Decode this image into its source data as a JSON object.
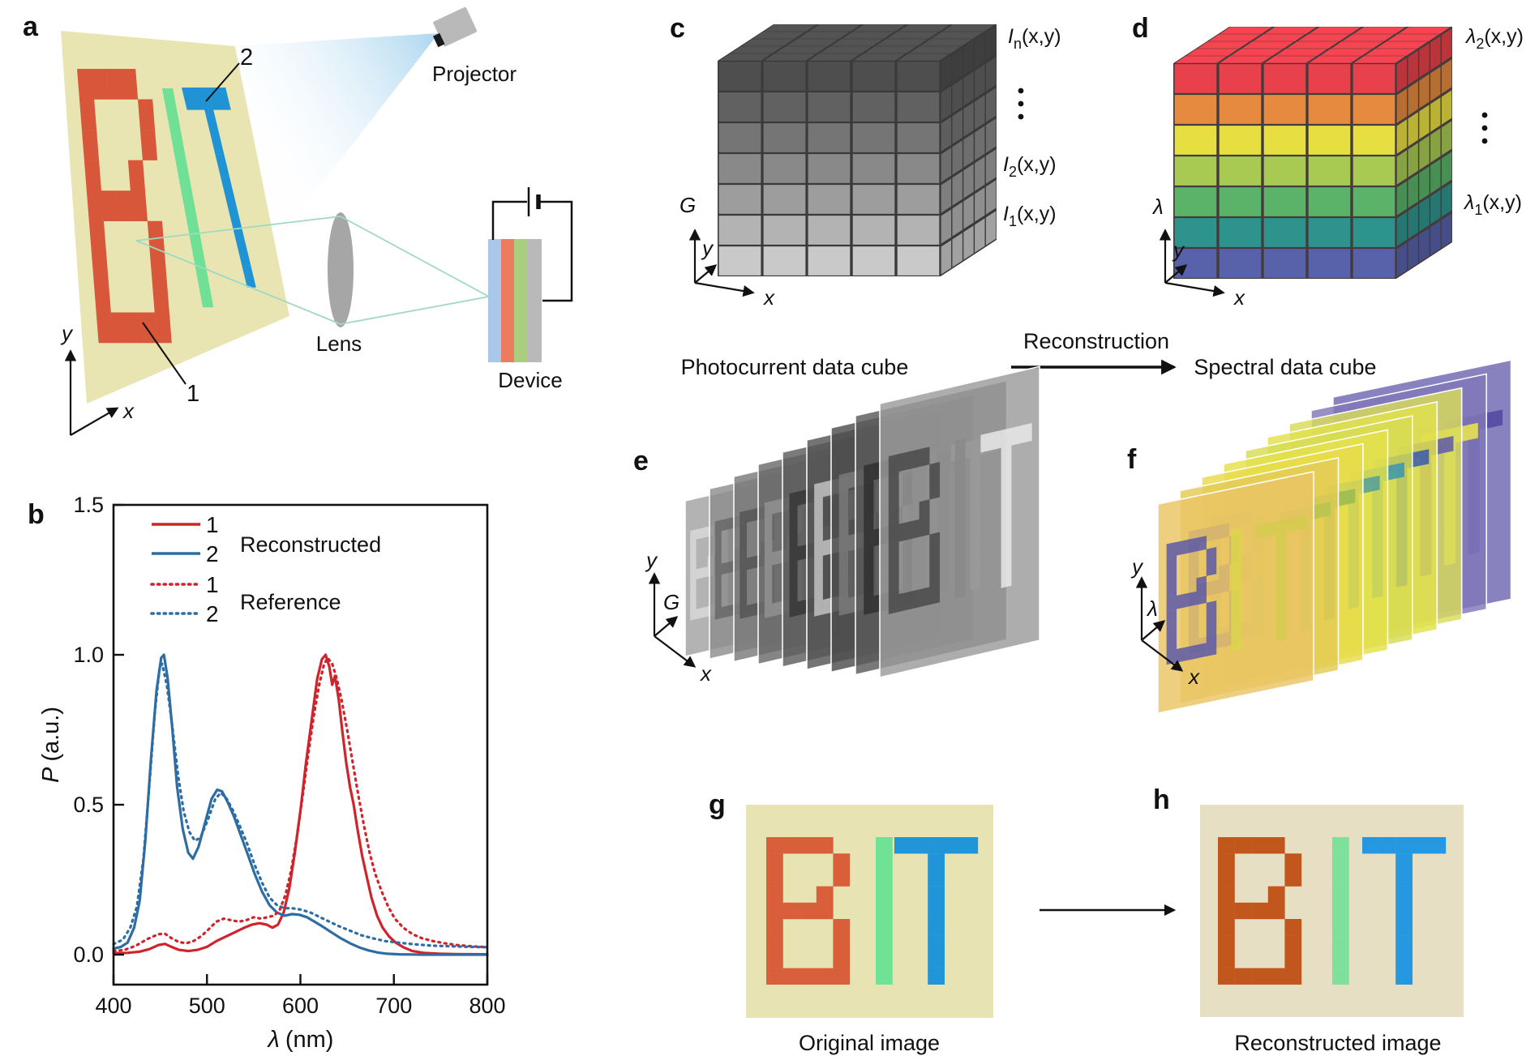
{
  "panel_labels": {
    "a": "a",
    "b": "b",
    "c": "c",
    "d": "d",
    "e": "e",
    "f": "f",
    "g": "g",
    "h": "h"
  },
  "panel_a": {
    "projector_label": "Projector",
    "lens_label": "Lens",
    "device_label": "Device",
    "marker_1": "1",
    "marker_2": "2",
    "axis_x": "x",
    "axis_y": "y",
    "colors": {
      "screen": "#e9e5b2",
      "letter_b": "#d8573a",
      "letter_i": "#6fe096",
      "letter_t": "#2093d4",
      "projector": "#b9b9b9",
      "nozzle": "#1a1a1a",
      "beam_start": "#a8d4ef",
      "beam_end": "#f6fbfe",
      "lens": "#a6a6a6",
      "ray": "#9fd9c0",
      "device_stripe_1": "#a9c7e8",
      "device_stripe_2": "#ec7c60",
      "device_stripe_3": "#a9cf7e",
      "device_stripe_4": "#b9b9b9",
      "wire": "#111111"
    }
  },
  "chart_data": {
    "type": "line",
    "title": "",
    "xlabel_sym": "λ",
    "xlabel_rest": "(nm)",
    "ylabel_sym": "P",
    "ylabel_rest": "(a.u.)",
    "xlim": [
      400,
      800
    ],
    "ylim": [
      0,
      1.5
    ],
    "grid": false,
    "legend_position": "upper-left",
    "xticks": [
      {
        "v": 400,
        "label": "400"
      },
      {
        "v": 500,
        "label": "500"
      },
      {
        "v": 600,
        "label": "600"
      },
      {
        "v": 700,
        "label": "700"
      },
      {
        "v": 800,
        "label": "800"
      }
    ],
    "yticks": [
      {
        "v": 0,
        "label": "0.0"
      },
      {
        "v": 0.5,
        "label": "0.5"
      },
      {
        "v": 1,
        "label": "1.0"
      },
      {
        "v": 1.5,
        "label": "1.5"
      }
    ],
    "legend": {
      "rows": [
        {
          "label": "1",
          "style": "solid",
          "color": "#cf242c"
        },
        {
          "label": "2",
          "style": "solid",
          "color": "#2e6da4"
        },
        {
          "label": "1",
          "style": "dotted",
          "color": "#cf242c"
        },
        {
          "label": "2",
          "style": "dotted",
          "color": "#2e6da4"
        }
      ],
      "groups": [
        "Reconstructed",
        "Reference"
      ]
    },
    "series": [
      {
        "name": "1 Reconstructed",
        "style": "solid",
        "color": "#cf242c",
        "points": [
          [
            400,
            0.005
          ],
          [
            415,
            0.006
          ],
          [
            428,
            0.01
          ],
          [
            438,
            0.018
          ],
          [
            448,
            0.032
          ],
          [
            455,
            0.036
          ],
          [
            462,
            0.026
          ],
          [
            470,
            0.016
          ],
          [
            480,
            0.012
          ],
          [
            490,
            0.016
          ],
          [
            500,
            0.026
          ],
          [
            510,
            0.045
          ],
          [
            520,
            0.06
          ],
          [
            530,
            0.075
          ],
          [
            540,
            0.09
          ],
          [
            548,
            0.1
          ],
          [
            556,
            0.105
          ],
          [
            564,
            0.1
          ],
          [
            570,
            0.09
          ],
          [
            576,
            0.1
          ],
          [
            582,
            0.14
          ],
          [
            588,
            0.22
          ],
          [
            594,
            0.34
          ],
          [
            600,
            0.48
          ],
          [
            606,
            0.64
          ],
          [
            612,
            0.78
          ],
          [
            618,
            0.92
          ],
          [
            623,
            0.985
          ],
          [
            627,
            1.0
          ],
          [
            631,
            0.96
          ],
          [
            634,
            0.9
          ],
          [
            637,
            0.93
          ],
          [
            641,
            0.85
          ],
          [
            645,
            0.74
          ],
          [
            649,
            0.64
          ],
          [
            653,
            0.56
          ],
          [
            657,
            0.5
          ],
          [
            661,
            0.42
          ],
          [
            666,
            0.33
          ],
          [
            671,
            0.26
          ],
          [
            676,
            0.19
          ],
          [
            682,
            0.13
          ],
          [
            688,
            0.09
          ],
          [
            695,
            0.06
          ],
          [
            702,
            0.04
          ],
          [
            710,
            0.025
          ],
          [
            720,
            0.012
          ],
          [
            732,
            0.006
          ],
          [
            748,
            0.003
          ],
          [
            765,
            0.002
          ],
          [
            800,
            0.001
          ]
        ]
      },
      {
        "name": "2 Reconstructed",
        "style": "solid",
        "color": "#2e6da4",
        "points": [
          [
            400,
            0.02
          ],
          [
            408,
            0.026
          ],
          [
            415,
            0.04
          ],
          [
            422,
            0.09
          ],
          [
            428,
            0.18
          ],
          [
            434,
            0.38
          ],
          [
            440,
            0.65
          ],
          [
            446,
            0.88
          ],
          [
            451,
            0.99
          ],
          [
            454,
            1.0
          ],
          [
            458,
            0.92
          ],
          [
            463,
            0.75
          ],
          [
            468,
            0.56
          ],
          [
            474,
            0.42
          ],
          [
            480,
            0.34
          ],
          [
            485,
            0.32
          ],
          [
            491,
            0.36
          ],
          [
            498,
            0.44
          ],
          [
            505,
            0.52
          ],
          [
            511,
            0.55
          ],
          [
            516,
            0.545
          ],
          [
            522,
            0.51
          ],
          [
            529,
            0.46
          ],
          [
            536,
            0.4
          ],
          [
            543,
            0.34
          ],
          [
            551,
            0.27
          ],
          [
            559,
            0.21
          ],
          [
            567,
            0.165
          ],
          [
            575,
            0.14
          ],
          [
            583,
            0.13
          ],
          [
            591,
            0.135
          ],
          [
            599,
            0.133
          ],
          [
            607,
            0.125
          ],
          [
            615,
            0.11
          ],
          [
            623,
            0.095
          ],
          [
            633,
            0.075
          ],
          [
            643,
            0.055
          ],
          [
            653,
            0.038
          ],
          [
            663,
            0.024
          ],
          [
            673,
            0.014
          ],
          [
            683,
            0.007
          ],
          [
            693,
            0.003
          ],
          [
            706,
            0.001
          ],
          [
            730,
            0
          ],
          [
            760,
            0
          ],
          [
            800,
            0
          ]
        ]
      },
      {
        "name": "1 Reference",
        "style": "dotted",
        "color": "#cf242c",
        "points": [
          [
            400,
            0.012
          ],
          [
            412,
            0.016
          ],
          [
            424,
            0.03
          ],
          [
            436,
            0.052
          ],
          [
            448,
            0.068
          ],
          [
            455,
            0.07
          ],
          [
            462,
            0.055
          ],
          [
            470,
            0.042
          ],
          [
            478,
            0.038
          ],
          [
            486,
            0.046
          ],
          [
            494,
            0.062
          ],
          [
            502,
            0.085
          ],
          [
            510,
            0.11
          ],
          [
            518,
            0.12
          ],
          [
            526,
            0.115
          ],
          [
            534,
            0.11
          ],
          [
            542,
            0.115
          ],
          [
            550,
            0.125
          ],
          [
            558,
            0.12
          ],
          [
            566,
            0.126
          ],
          [
            572,
            0.13
          ],
          [
            578,
            0.15
          ],
          [
            584,
            0.2
          ],
          [
            590,
            0.28
          ],
          [
            596,
            0.39
          ],
          [
            602,
            0.52
          ],
          [
            608,
            0.66
          ],
          [
            614,
            0.79
          ],
          [
            620,
            0.9
          ],
          [
            625,
            0.965
          ],
          [
            629,
            0.99
          ],
          [
            634,
            0.97
          ],
          [
            639,
            0.92
          ],
          [
            644,
            0.85
          ],
          [
            650,
            0.75
          ],
          [
            656,
            0.64
          ],
          [
            662,
            0.53
          ],
          [
            668,
            0.43
          ],
          [
            674,
            0.34
          ],
          [
            680,
            0.27
          ],
          [
            687,
            0.21
          ],
          [
            694,
            0.16
          ],
          [
            701,
            0.12
          ],
          [
            710,
            0.09
          ],
          [
            720,
            0.068
          ],
          [
            730,
            0.055
          ],
          [
            742,
            0.045
          ],
          [
            754,
            0.038
          ],
          [
            768,
            0.032
          ],
          [
            782,
            0.028
          ],
          [
            800,
            0.025
          ]
        ]
      },
      {
        "name": "2 Reference",
        "style": "dotted",
        "color": "#2e6da4",
        "points": [
          [
            400,
            0.035
          ],
          [
            410,
            0.05
          ],
          [
            418,
            0.09
          ],
          [
            425,
            0.16
          ],
          [
            432,
            0.32
          ],
          [
            438,
            0.55
          ],
          [
            444,
            0.8
          ],
          [
            449,
            0.95
          ],
          [
            452,
            0.97
          ],
          [
            457,
            0.9
          ],
          [
            463,
            0.76
          ],
          [
            469,
            0.6
          ],
          [
            475,
            0.48
          ],
          [
            481,
            0.41
          ],
          [
            487,
            0.38
          ],
          [
            493,
            0.39
          ],
          [
            501,
            0.45
          ],
          [
            509,
            0.52
          ],
          [
            515,
            0.54
          ],
          [
            521,
            0.52
          ],
          [
            528,
            0.48
          ],
          [
            535,
            0.43
          ],
          [
            543,
            0.37
          ],
          [
            551,
            0.3
          ],
          [
            559,
            0.24
          ],
          [
            567,
            0.19
          ],
          [
            575,
            0.165
          ],
          [
            583,
            0.155
          ],
          [
            591,
            0.155
          ],
          [
            601,
            0.15
          ],
          [
            611,
            0.14
          ],
          [
            621,
            0.125
          ],
          [
            631,
            0.11
          ],
          [
            641,
            0.095
          ],
          [
            653,
            0.08
          ],
          [
            665,
            0.065
          ],
          [
            677,
            0.055
          ],
          [
            691,
            0.045
          ],
          [
            705,
            0.04
          ],
          [
            720,
            0.035
          ],
          [
            740,
            0.03
          ],
          [
            760,
            0.028
          ],
          [
            780,
            0.026
          ],
          [
            800,
            0.025
          ]
        ]
      }
    ]
  },
  "panel_c": {
    "caption": "Photocurrent data cube",
    "axis_up": "G",
    "axis_depth": "y",
    "axis_right": "x",
    "label_top": {
      "sym": "I",
      "sub": "n",
      "args": "(x,y)"
    },
    "label_mid": {
      "sym": "I",
      "sub": "2",
      "args": "(x,y)"
    },
    "label_bot": {
      "sym": "I",
      "sub": "1",
      "args": "(x,y)"
    },
    "layer_colors": [
      "#4e4e4e",
      "#616161",
      "#757575",
      "#898989",
      "#9d9d9d",
      "#b3b3b3",
      "#c9c9c9"
    ],
    "seam_color": "#3a3a3a"
  },
  "panel_d": {
    "caption": "Spectral data cube",
    "arrow_label": "Reconstruction",
    "axis_up": "λ",
    "axis_depth": "y",
    "axis_right": "x",
    "label_top": {
      "sym": "λ",
      "sub": "2",
      "args": "(x,y)"
    },
    "label_bot": {
      "sym": "λ",
      "sub": "1",
      "args": "(x,y)"
    },
    "layer_colors": [
      "#e8414b",
      "#e58a3e",
      "#e7df41",
      "#a8ca52",
      "#5ab368",
      "#2f938d",
      "#5862aa"
    ],
    "seam_color": "#443c3c"
  },
  "panel_e": {
    "axis_up": "y",
    "axis_depth": "G",
    "axis_right": "x",
    "slices": [
      {
        "bg": "#a2a2a2",
        "B": "#d9d9d9",
        "I": "#6e6e6e",
        "T": "#c6c6c6"
      },
      {
        "bg": "#8d8d8d",
        "B": "#696969",
        "I": "#bababa",
        "T": "#575757"
      },
      {
        "bg": "#7a7a7a",
        "B": "#555555",
        "I": "#9a9a9a",
        "T": "#e2e2e2"
      },
      {
        "bg": "#6a6a6a",
        "B": "#929292",
        "I": "#474747",
        "T": "#cecece"
      },
      {
        "bg": "#5e5e5e",
        "B": "#373737",
        "I": "#828282",
        "T": "#aaaaaa"
      },
      {
        "bg": "#555555",
        "B": "#c2c2c2",
        "I": "#2f2f2f",
        "T": "#8a8a8a"
      },
      {
        "bg": "#4d4d4d",
        "B": "#7a7a7a",
        "I": "#a2a2a2",
        "T": "#393939"
      },
      {
        "bg": "#5a5a5a",
        "B": "#303030",
        "I": "#6a6a6a",
        "T": "#929292"
      },
      {
        "bg": "#9b9b9b",
        "B": "#4a4a4a",
        "I": "#8a8a8a",
        "T": "#e8e8e8"
      }
    ]
  },
  "panel_f": {
    "axis_up": "y",
    "axis_depth": "λ",
    "axis_right": "x",
    "slices": [
      {
        "bg": "#eac564",
        "B": "#5c5aa8",
        "I": "#ddd64d",
        "T": "#d5cc4f"
      },
      {
        "bg": "#e3cb55",
        "B": "#6c66aa",
        "I": "#c9cc4b",
        "T": "#b9c44f"
      },
      {
        "bg": "#e8dc4b",
        "B": "#48968e",
        "I": "#d8dc4b",
        "T": "#99bc51"
      },
      {
        "bg": "#e4e04b",
        "B": "#3a8e8c",
        "I": "#b1cc51",
        "T": "#53a09a"
      },
      {
        "bg": "#d5dc53",
        "B": "#33888c",
        "I": "#e0e04b",
        "T": "#3a96b0"
      },
      {
        "bg": "#e0e04d",
        "B": "#4068b0",
        "I": "#c9d44f",
        "T": "#3a5ab0"
      },
      {
        "bg": "#d9dc59",
        "B": "#5650a8",
        "I": "#a9b8b8",
        "T": "#6058ac"
      },
      {
        "bg": "#8078b8",
        "B": "#e8e44f",
        "I": "#6c64b0",
        "T": "#efe84f"
      },
      {
        "bg": "#6e66b0",
        "B": "#5850a0",
        "I": "#7870b4",
        "T": "#5048a0"
      }
    ]
  },
  "panel_g": {
    "caption": "Original image",
    "colors": {
      "bg": "#e8e3b3",
      "B": "#d85f3a",
      "I": "#70e296",
      "T": "#2095d8"
    }
  },
  "panel_h": {
    "caption": "Reconstructed image",
    "colors": {
      "bg": "#e7dfc4",
      "B": "#c2571d",
      "I": "#7de19c",
      "T": "#2598e2"
    }
  },
  "letters": {
    "B": [
      "11110",
      "10001",
      "10001",
      "10010",
      "11110",
      "10001",
      "10001",
      "10001",
      "11111"
    ],
    "I": [
      "1",
      "1",
      "1",
      "1",
      "1",
      "1",
      "1",
      "1",
      "1"
    ],
    "T": [
      "11111",
      "00100",
      "00100",
      "00100",
      "00100",
      "00100",
      "00100",
      "00100",
      "00100"
    ]
  }
}
